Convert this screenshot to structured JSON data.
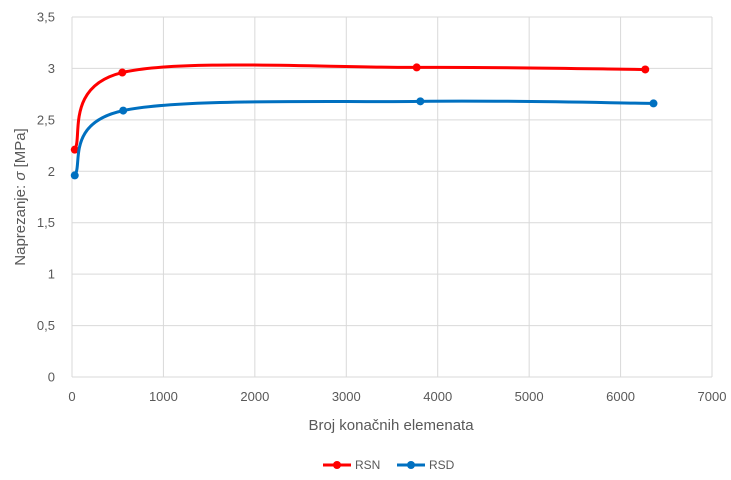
{
  "chart_data": {
    "type": "line",
    "title": "",
    "xlabel": "Broj konačnih elemenata",
    "ylabel_prefix": "Naprezanje: ",
    "ylabel_symbol": "σ",
    "ylabel_suffix": " [MPa]",
    "xlim": [
      0,
      7000
    ],
    "ylim": [
      0,
      3.5
    ],
    "x_ticks": [
      "0",
      "1000",
      "2000",
      "3000",
      "4000",
      "5000",
      "6000",
      "7000"
    ],
    "y_ticks": [
      "0",
      "0,5",
      "1",
      "1,5",
      "2",
      "2,5",
      "3",
      "3,5"
    ],
    "grid": "vertical and horizontal",
    "legend_position": "bottom",
    "smoothed": true,
    "series": [
      {
        "name": "RSN",
        "color": "#ff0000",
        "points": [
          {
            "x": 30,
            "y": 2.21
          },
          {
            "x": 550,
            "y": 2.96
          },
          {
            "x": 3770,
            "y": 3.01
          },
          {
            "x": 6270,
            "y": 2.99
          }
        ]
      },
      {
        "name": "RSD",
        "color": "#0070c0",
        "points": [
          {
            "x": 30,
            "y": 1.96
          },
          {
            "x": 560,
            "y": 2.59
          },
          {
            "x": 3810,
            "y": 2.68
          },
          {
            "x": 6360,
            "y": 2.66
          }
        ]
      }
    ]
  }
}
